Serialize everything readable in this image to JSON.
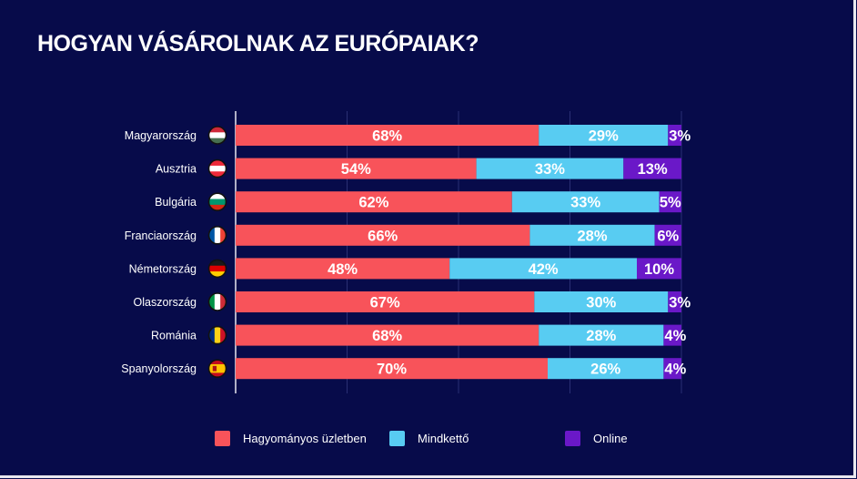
{
  "title": "HOGYAN VÁSÁROLNAK AZ EURÓPAIAK?",
  "chart_data": {
    "type": "bar",
    "orientation": "horizontal",
    "stacked": true,
    "categories": [
      "Magyarország",
      "Ausztria",
      "Bulgária",
      "Franciaország",
      "Németország",
      "Olaszország",
      "Románia",
      "Spanyolország"
    ],
    "category_flags": [
      "hungary-flag-icon",
      "austria-flag-icon",
      "bulgaria-flag-icon",
      "france-flag-icon",
      "germany-flag-icon",
      "italy-flag-icon",
      "romania-flag-icon",
      "spain-flag-icon"
    ],
    "series": [
      {
        "name": "Hagyományos üzletben",
        "color": "#f8535a",
        "values": [
          68,
          54,
          62,
          66,
          48,
          67,
          68,
          70
        ],
        "labels": [
          "68%",
          "54%",
          "62%",
          "66%",
          "48%",
          "67%",
          "68%",
          "70%"
        ]
      },
      {
        "name": "Mindkettő",
        "color": "#58ccf2",
        "values": [
          29,
          33,
          33,
          28,
          42,
          30,
          28,
          26
        ],
        "labels": [
          "29%",
          "33%",
          "33%",
          "28%",
          "42%",
          "30%",
          "28%",
          "26%"
        ]
      },
      {
        "name": "Online",
        "color": "#6a18c8",
        "values": [
          3,
          13,
          5,
          6,
          10,
          3,
          4,
          4
        ],
        "labels": [
          "3%",
          "13%",
          "5%",
          "6%",
          "10%",
          "3%",
          "4%",
          "4%"
        ]
      }
    ],
    "xlim": [
      0,
      100
    ],
    "grid": true,
    "legend_position": "bottom"
  }
}
